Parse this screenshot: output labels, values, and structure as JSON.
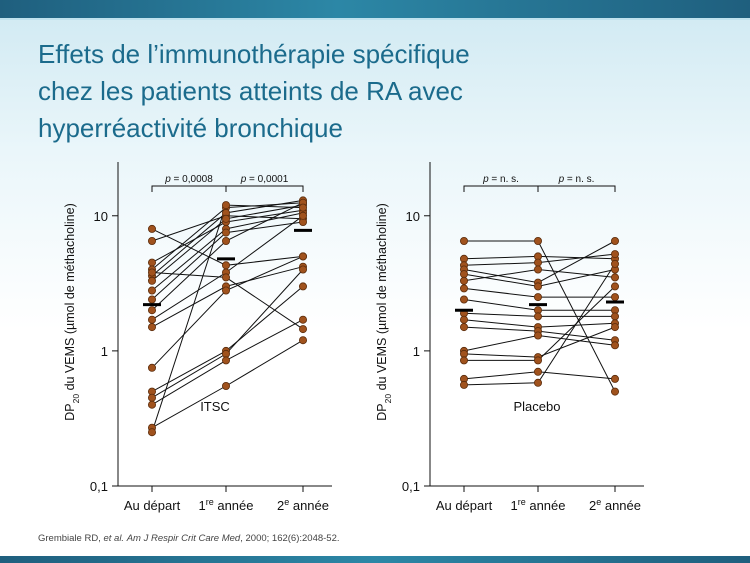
{
  "slide": {
    "title_lines": [
      "Effets de l’immunothérapie spécifique",
      "chez les patients atteints de RA avec",
      "hyperréactivité bronchique"
    ],
    "citation": {
      "authors": "Grembiale RD, ",
      "etal": "et al.",
      "journal": "Am J Respir Crit Care Med",
      "rest": ", 2000; 162(6):2048-52."
    }
  },
  "colors": {
    "point_fill": "#a0521d",
    "point_stroke": "#5a2c0c",
    "line": "#111111",
    "title": "#1b6b8c"
  },
  "chart_data": [
    {
      "type": "scatter",
      "label": "ITSC",
      "ylabel_parts": [
        "DP",
        "20",
        " du VEMS (µmol de méthacholine)"
      ],
      "yscale": "log",
      "ylim": [
        0.1,
        25
      ],
      "yticks": [
        "0,1",
        "1",
        "10"
      ],
      "categories": [
        {
          "base": "Au départ",
          "sup": ""
        },
        {
          "base": "1",
          "sup": "re",
          "rest": " année"
        },
        {
          "base": "2",
          "sup": "e",
          "rest": " année"
        }
      ],
      "significance": [
        {
          "italic": "p",
          "text": " = 0,0008",
          "from": 0,
          "to": 1
        },
        {
          "italic": "p",
          "text": " = 0,0001",
          "from": 1,
          "to": 2
        }
      ],
      "means": [
        2.2,
        4.8,
        7.8
      ],
      "patients": [
        [
          8.0,
          4.3,
          5.0
        ],
        [
          6.5,
          10.0,
          9.5
        ],
        [
          4.5,
          9.0,
          11.0
        ],
        [
          4.0,
          11.5,
          12.5
        ],
        [
          3.6,
          10.5,
          13.0
        ],
        [
          3.3,
          9.5,
          12.0
        ],
        [
          2.8,
          8.0,
          10.5
        ],
        [
          2.4,
          7.5,
          9.0
        ],
        [
          2.0,
          6.5,
          12.5
        ],
        [
          1.7,
          3.8,
          10.0
        ],
        [
          1.5,
          3.0,
          4.2
        ],
        [
          0.75,
          2.8,
          5.0
        ],
        [
          0.5,
          1.0,
          3.0
        ],
        [
          0.45,
          0.95,
          4.0
        ],
        [
          0.4,
          0.85,
          1.7
        ],
        [
          0.27,
          0.55,
          1.2
        ],
        [
          0.25,
          12.0,
          11.5
        ],
        [
          3.8,
          3.5,
          1.45
        ]
      ]
    },
    {
      "type": "scatter",
      "label": "Placebo",
      "ylabel_parts": [
        "DP",
        "20",
        " du VEMS (µmol de méthacholine)"
      ],
      "yscale": "log",
      "ylim": [
        0.1,
        25
      ],
      "yticks": [
        "0,1",
        "1",
        "10"
      ],
      "categories": [
        {
          "base": "Au départ",
          "sup": ""
        },
        {
          "base": "1",
          "sup": "re",
          "rest": " année"
        },
        {
          "base": "2",
          "sup": "e",
          "rest": " année"
        }
      ],
      "significance": [
        {
          "italic": "p",
          "text": " = n. s.",
          "from": 0,
          "to": 1
        },
        {
          "italic": "p",
          "text": " = n. s.",
          "from": 1,
          "to": 2
        }
      ],
      "means": [
        2.0,
        2.2,
        2.3
      ],
      "patients": [
        [
          6.5,
          6.5,
          0.5
        ],
        [
          4.8,
          5.0,
          4.8
        ],
        [
          4.3,
          4.5,
          5.2
        ],
        [
          4.0,
          3.2,
          6.5
        ],
        [
          3.7,
          3.0,
          4.0
        ],
        [
          3.3,
          4.0,
          3.5
        ],
        [
          2.9,
          2.5,
          2.5
        ],
        [
          2.4,
          2.0,
          2.0
        ],
        [
          1.9,
          1.8,
          1.8
        ],
        [
          1.7,
          1.5,
          1.6
        ],
        [
          1.5,
          1.4,
          1.2
        ],
        [
          1.0,
          1.3,
          1.1
        ],
        [
          0.95,
          0.9,
          1.5
        ],
        [
          0.85,
          0.85,
          3.0
        ],
        [
          0.62,
          0.7,
          0.62
        ],
        [
          0.56,
          0.58,
          4.4
        ]
      ]
    }
  ]
}
